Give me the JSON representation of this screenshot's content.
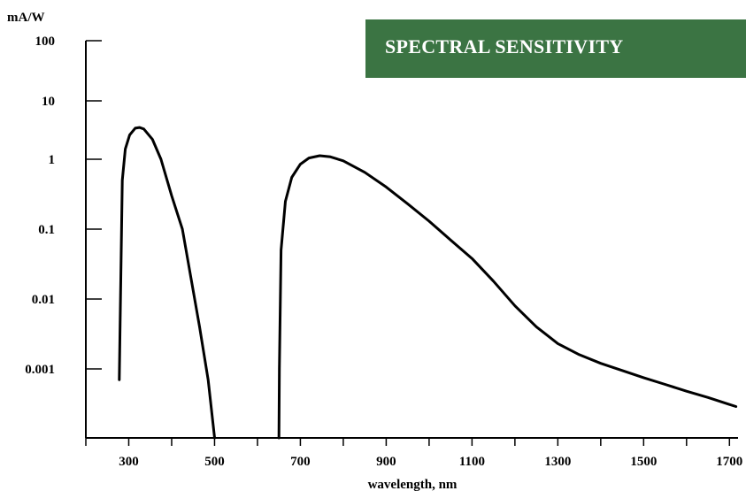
{
  "chart_data": {
    "type": "line",
    "title": "SPECTRAL SENSITIVITY",
    "xlabel": "wavelength, nm",
    "ylabel": "mA/W",
    "yscale": "log",
    "xlim": [
      200,
      1720
    ],
    "ylim": [
      0.0001,
      100
    ],
    "x_ticks": [
      300,
      500,
      700,
      900,
      1100,
      1300,
      1500,
      1700
    ],
    "x_tick_labels": [
      "300",
      "500",
      "700",
      "900",
      "1100",
      "1300",
      "1500",
      "1700"
    ],
    "y_ticks": [
      0.001,
      0.01,
      0.1,
      1,
      10,
      100
    ],
    "y_tick_labels": [
      "0.001",
      "0.01",
      "0.1",
      "1",
      "10",
      "100"
    ],
    "grid": false,
    "series": [
      {
        "color": "#000000",
        "points": [
          [
            278,
            0.0007
          ],
          [
            280,
            0.005
          ],
          [
            285,
            0.5
          ],
          [
            292,
            1.5
          ],
          [
            302,
            2.6
          ],
          [
            315,
            3.4
          ],
          [
            325,
            3.5
          ],
          [
            335,
            3.3
          ],
          [
            355,
            2.2
          ],
          [
            375,
            1.0
          ],
          [
            400,
            0.3
          ],
          [
            425,
            0.1
          ],
          [
            445,
            0.02
          ],
          [
            465,
            0.004
          ],
          [
            485,
            0.0007
          ],
          [
            500,
            0.0001
          ]
        ]
      },
      {
        "color": "#000000",
        "points": [
          [
            650,
            0.0001
          ],
          [
            651,
            0.001
          ],
          [
            655,
            0.05
          ],
          [
            665,
            0.25
          ],
          [
            680,
            0.55
          ],
          [
            700,
            0.85
          ],
          [
            720,
            1.05
          ],
          [
            745,
            1.15
          ],
          [
            770,
            1.1
          ],
          [
            800,
            0.95
          ],
          [
            850,
            0.65
          ],
          [
            900,
            0.4
          ],
          [
            950,
            0.23
          ],
          [
            1000,
            0.13
          ],
          [
            1050,
            0.07
          ],
          [
            1100,
            0.038
          ],
          [
            1150,
            0.018
          ],
          [
            1200,
            0.008
          ],
          [
            1250,
            0.004
          ],
          [
            1300,
            0.0023
          ],
          [
            1350,
            0.0016
          ],
          [
            1400,
            0.0012
          ],
          [
            1450,
            0.00095
          ],
          [
            1500,
            0.00075
          ],
          [
            1550,
            0.0006
          ],
          [
            1600,
            0.00048
          ],
          [
            1650,
            0.00039
          ],
          [
            1700,
            0.00031
          ],
          [
            1715,
            0.00029
          ]
        ]
      }
    ]
  }
}
